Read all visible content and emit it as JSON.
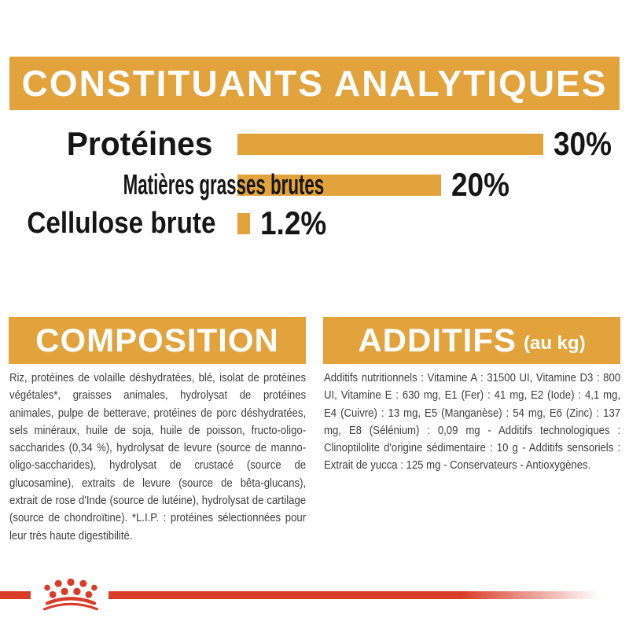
{
  "header": {
    "title": "CONSTITUANTS ANALYTIQUES"
  },
  "colors": {
    "gold": "#E2A23C",
    "red": "#D93D2A",
    "chart_text": "#161616",
    "body_text": "#3D3D3D",
    "banner_text": "#FFFFFF",
    "background": "#FFFFFF"
  },
  "chart_data": {
    "type": "bar",
    "orientation": "horizontal",
    "title": "CONSTITUANTS ANALYTIQUES",
    "categories": [
      "Protéines",
      "Matières grasses brutes",
      "Cellulose brute"
    ],
    "values": [
      30,
      20,
      1.2
    ],
    "value_labels": [
      "30%",
      "20%",
      "1.2%"
    ],
    "unit": "%",
    "xlim": [
      0,
      30
    ],
    "bar_color": "#E2A23C",
    "grid": false,
    "legend": false
  },
  "composition": {
    "heading": "COMPOSITION",
    "body": "Riz, protéines de volaille déshydratées, blé, isolat de protéines végétales*, graisses animales, hydrolysat de protéines animales, pulpe de betterave, protéines de porc déshydratées, sels minéraux, huile de soja, huile de poisson, fructo-oligo-saccharides (0,34 %), hydrolysat de levure (source de manno-oligo-saccharides), hydrolysat de crustacé (source de glucosamine), extraits de levure (source de bêta-glucans), extrait de rose d'Inde (source de lutéine), hydrolysat de cartilage (source de chondroïtine). *L.I.P. : protéines sélectionnées pour leur très haute digestibilité."
  },
  "additifs": {
    "heading": "ADDITIFS",
    "heading_suffix": "(au kg)",
    "body": "Additifs nutritionnels : Vitamine A : 31500 UI, Vitamine D3 : 800 UI, Vitamine E : 630 mg, E1 (Fer) : 41 mg, E2 (Iode) : 4,1 mg, E4 (Cuivre) : 13 mg, E5 (Manganèse) : 54 mg, E6 (Zinc) : 137 mg, E8 (Sélénium) : 0,09 mg - Additifs technologiques : Clinoptilolite d'origine sédimentaire : 10 g - Additifs sensoriels : Extrait de yucca : 125 mg - Conservateurs - Antioxygènes."
  },
  "footer": {
    "logo": "royal-canin-crown"
  }
}
